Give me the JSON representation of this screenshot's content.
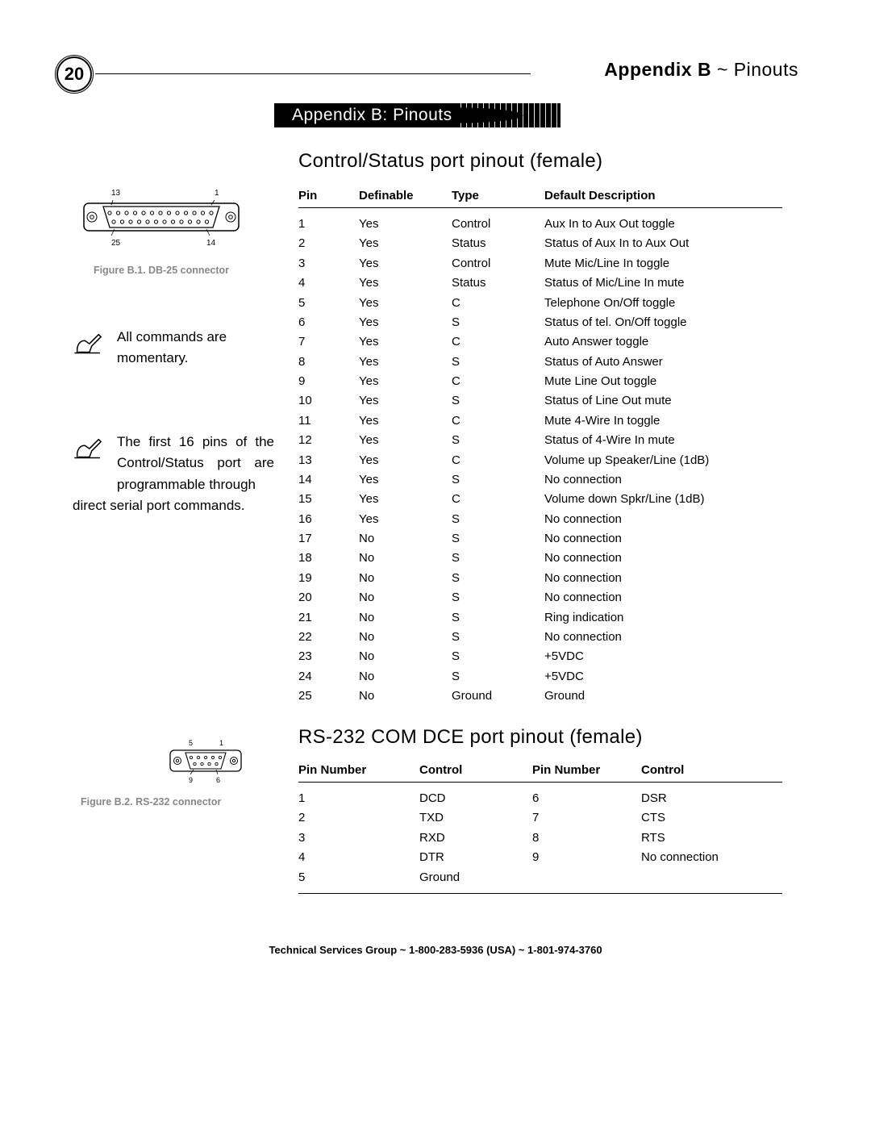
{
  "page": {
    "number": "20",
    "header_label": "Appendix B",
    "header_suffix": " ~ Pinouts",
    "banner": "Appendix B: Pinouts"
  },
  "section1": {
    "title": "Control/Status port pinout (female)",
    "columns": [
      "Pin",
      "Definable",
      "Type",
      "Default Description"
    ],
    "rows": [
      [
        "1",
        "Yes",
        "Control",
        "Aux In to Aux Out toggle"
      ],
      [
        "2",
        "Yes",
        "Status",
        "Status of Aux In to Aux Out"
      ],
      [
        "3",
        "Yes",
        "Control",
        "Mute Mic/Line In toggle"
      ],
      [
        "4",
        "Yes",
        "Status",
        "Status of Mic/Line In mute"
      ],
      [
        "5",
        "Yes",
        "C",
        "Telephone On/Off toggle"
      ],
      [
        "6",
        "Yes",
        "S",
        "Status of tel. On/Off toggle"
      ],
      [
        "7",
        "Yes",
        "C",
        "Auto Answer toggle"
      ],
      [
        "8",
        "Yes",
        "S",
        "Status of Auto Answer"
      ],
      [
        "9",
        "Yes",
        "C",
        "Mute Line Out toggle"
      ],
      [
        "10",
        "Yes",
        "S",
        "Status of Line Out mute"
      ],
      [
        "11",
        "Yes",
        "C",
        "Mute 4-Wire In toggle"
      ],
      [
        "12",
        "Yes",
        "S",
        "Status of 4-Wire In mute"
      ],
      [
        "13",
        "Yes",
        "C",
        "Volume up Speaker/Line (1dB)"
      ],
      [
        "14",
        "Yes",
        "S",
        "No connection"
      ],
      [
        "15",
        "Yes",
        "C",
        "Volume down Spkr/Line (1dB)"
      ],
      [
        "16",
        "Yes",
        "S",
        "No connection"
      ],
      [
        "17",
        "No",
        "S",
        "No connection"
      ],
      [
        "18",
        "No",
        "S",
        "No connection"
      ],
      [
        "19",
        "No",
        "S",
        "No connection"
      ],
      [
        "20",
        "No",
        "S",
        "No connection"
      ],
      [
        "21",
        "No",
        "S",
        "Ring indication"
      ],
      [
        "22",
        "No",
        "S",
        "No connection"
      ],
      [
        "23",
        "No",
        "S",
        "+5VDC"
      ],
      [
        "24",
        "No",
        "S",
        "+5VDC"
      ],
      [
        "25",
        "No",
        "Ground",
        "Ground"
      ]
    ]
  },
  "section2": {
    "title": "RS-232 COM DCE port pinout (female)",
    "columns": [
      "Pin Number",
      "Control",
      "Pin Number",
      "Control"
    ],
    "rows": [
      [
        "1",
        "DCD",
        "6",
        "DSR"
      ],
      [
        "2",
        "TXD",
        "7",
        "CTS"
      ],
      [
        "3",
        "RXD",
        "8",
        "RTS"
      ],
      [
        "4",
        "DTR",
        "9",
        "No connection"
      ],
      [
        "5",
        "Ground",
        "",
        ""
      ]
    ]
  },
  "figures": {
    "db25": {
      "caption": "Figure B.1. DB-25 connector",
      "top_left_label": "13",
      "top_right_label": "1",
      "bottom_left_label": "25",
      "bottom_right_label": "14"
    },
    "rs232": {
      "caption": "Figure B.2. RS-232 connector",
      "top_left_label": "5",
      "top_right_label": "1",
      "bottom_left_label": "9",
      "bottom_right_label": "6"
    }
  },
  "notes": {
    "note1": "All commands are momentary.",
    "note2_a": "The first 16 pins of the Control/Status port are programmable through",
    "note2_b": "direct serial port commands."
  },
  "footer": "Technical Services Group ~ 1-800-283-5936 (USA) ~ 1-801-974-3760"
}
